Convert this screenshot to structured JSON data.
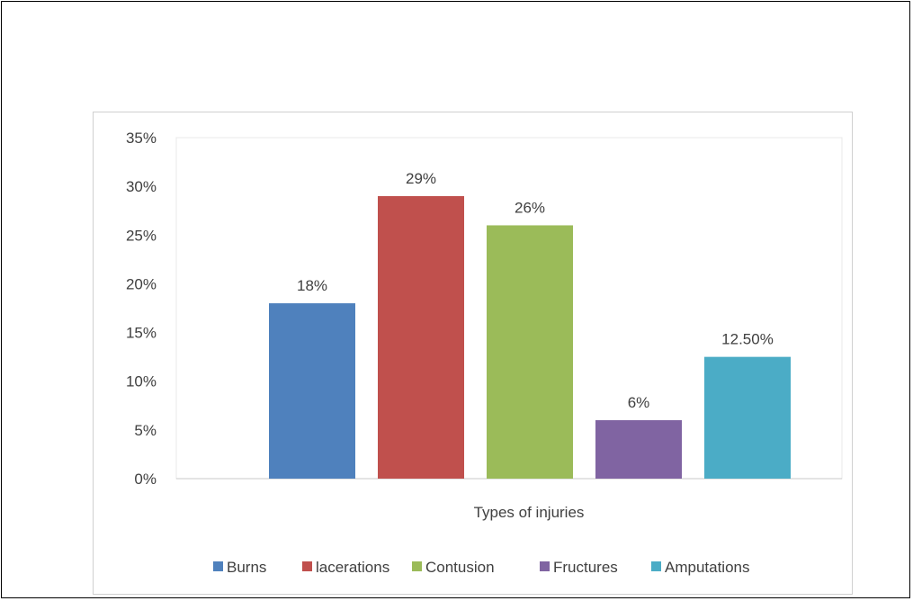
{
  "chart_data": {
    "type": "bar",
    "xlabel": "Types of injuries",
    "ylabel": "",
    "ylim": [
      0,
      35
    ],
    "yticks": [
      0,
      5,
      10,
      15,
      20,
      25,
      30,
      35
    ],
    "ytick_labels": [
      "0%",
      "5%",
      "10%",
      "15%",
      "20%",
      "25%",
      "30%",
      "35%"
    ],
    "grid": false,
    "legend_position": "bottom",
    "series": [
      {
        "name": "Burns",
        "value": 18,
        "label": "18%",
        "color": "#4f81bd"
      },
      {
        "name": "lacerations",
        "value": 29,
        "label": "29%",
        "color": "#c0504d"
      },
      {
        "name": "Contusion",
        "value": 26,
        "label": "26%",
        "color": "#9bbb59"
      },
      {
        "name": "Fructures",
        "value": 6,
        "label": "6%",
        "color": "#8064a2"
      },
      {
        "name": "Amputations",
        "value": 12.5,
        "label": "12.50%",
        "color": "#4bacc6"
      }
    ]
  }
}
